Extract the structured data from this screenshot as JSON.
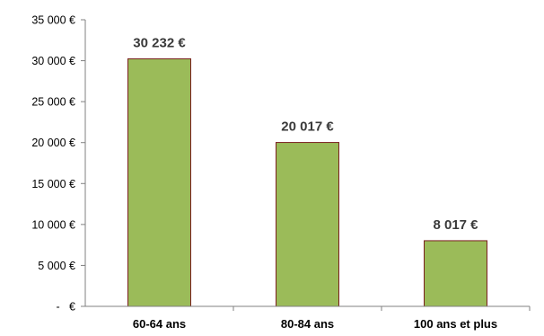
{
  "chart_data": {
    "type": "bar",
    "categories": [
      "60-64 ans",
      "80-84 ans",
      "100 ans et plus"
    ],
    "values": [
      30232,
      20017,
      8017
    ],
    "data_labels": [
      "30 232 €",
      "20 017 €",
      "8 017 €"
    ],
    "ylim": [
      0,
      35000
    ],
    "yticks": [
      0,
      5000,
      10000,
      15000,
      20000,
      25000,
      30000,
      35000
    ],
    "ytick_labels": [
      "-   €",
      "5 000 €",
      "10 000 €",
      "15 000 €",
      "20 000 €",
      "25 000 €",
      "30 000 €",
      "35 000 €"
    ],
    "grid": false,
    "legend": "none",
    "colors": {
      "bar_fill": "#9bbb59",
      "bar_edge": "#7a1f1f",
      "axis": "#808080"
    }
  }
}
